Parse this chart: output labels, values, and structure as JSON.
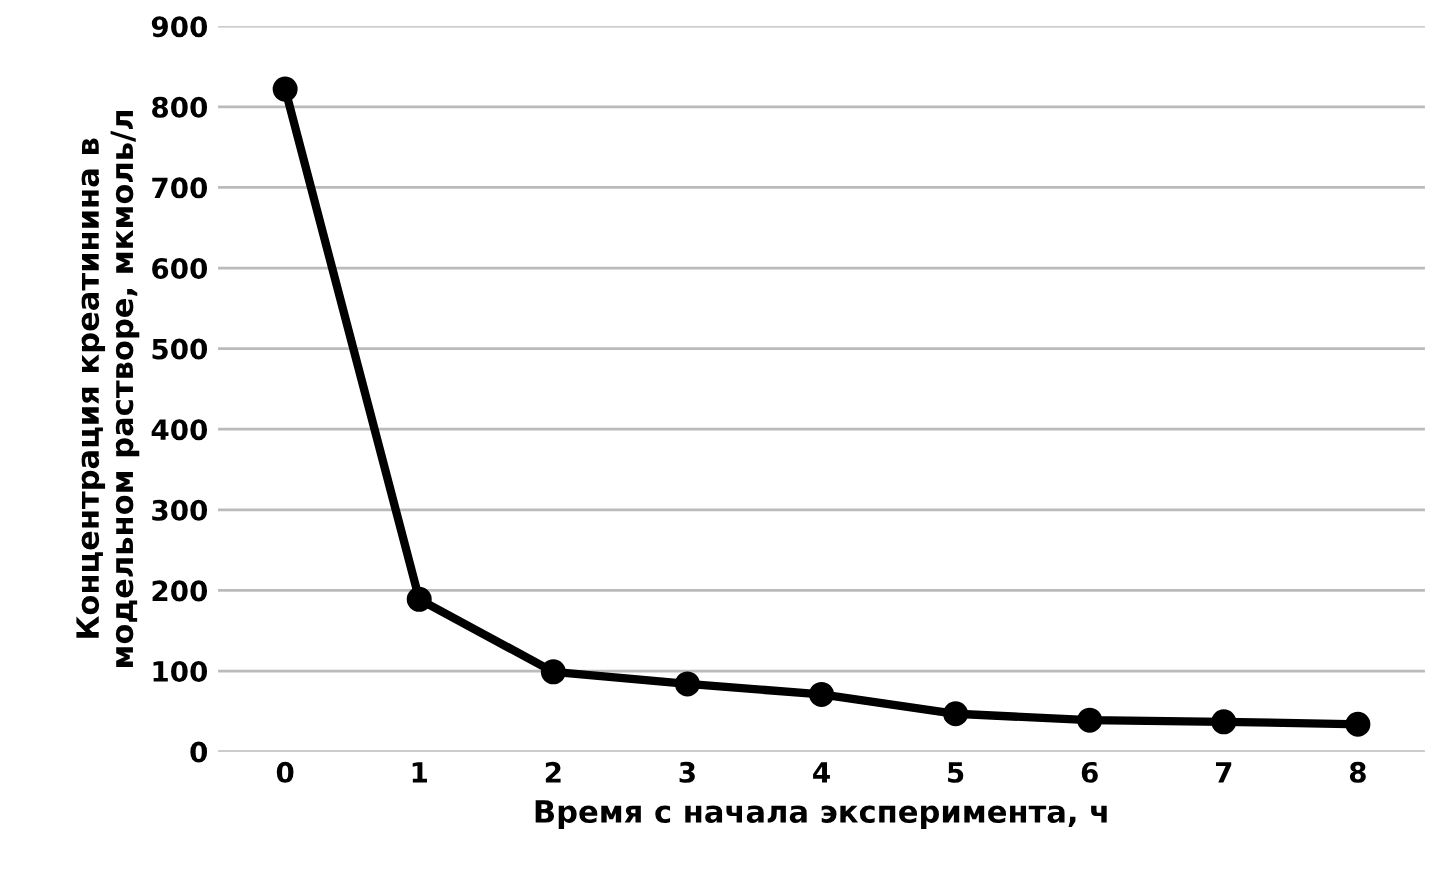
{
  "chart_data": {
    "type": "line",
    "xlabel": "Время с начала эксперимента, ч",
    "ylabel": "Концентрация креатинина в\nмодельном растворе, мкмоль/л",
    "categories": [
      "0",
      "1",
      "2",
      "3",
      "4",
      "5",
      "6",
      "7",
      "8"
    ],
    "series": [
      {
        "color": "#000000",
        "values": [
          822,
          189,
          99,
          84,
          71,
          47,
          39,
          37,
          34
        ]
      }
    ],
    "ylim": [
      0,
      900
    ],
    "yticks": [
      0,
      100,
      200,
      300,
      400,
      500,
      600,
      700,
      800,
      900
    ],
    "grid": "y",
    "marker": "circle",
    "line_style": "solid"
  }
}
